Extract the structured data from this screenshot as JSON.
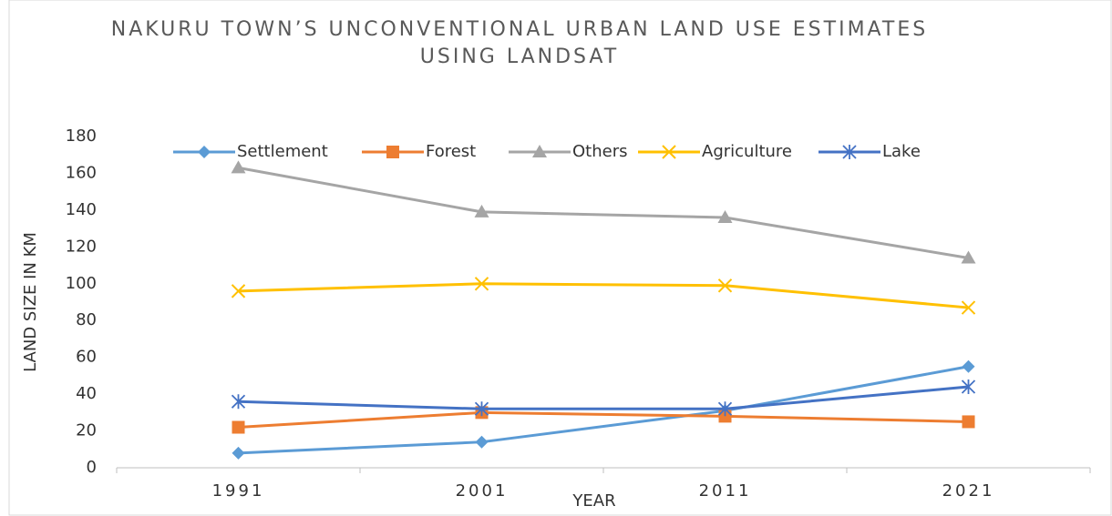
{
  "chart_data": {
    "type": "line",
    "title": "NAKURU TOWN’S UNCONVENTIONAL URBAN LAND USE ESTIMATES USING LANDSAT",
    "x_label": "YEAR",
    "y_label": "LAND SIZE IN KM",
    "categories": [
      "1991",
      "2001",
      "2011",
      "2021"
    ],
    "series": [
      {
        "name": "Settlement",
        "color": "#5b9bd5",
        "marker": "diamond",
        "values": [
          8,
          14,
          31,
          55
        ]
      },
      {
        "name": "Forest",
        "color": "#ed7d31",
        "marker": "square",
        "values": [
          22,
          30,
          28,
          25
        ]
      },
      {
        "name": "Others",
        "color": "#a5a5a5",
        "marker": "triangle",
        "values": [
          163,
          139,
          136,
          114
        ]
      },
      {
        "name": "Agriculture",
        "color": "#ffc000",
        "marker": "x",
        "values": [
          96,
          100,
          99,
          87
        ]
      },
      {
        "name": "Lake",
        "color": "#4472c4",
        "marker": "star",
        "values": [
          36,
          32,
          32,
          44
        ]
      }
    ],
    "ylim": [
      0,
      180
    ],
    "yticks": [
      0,
      20,
      40,
      60,
      80,
      100,
      120,
      140,
      160,
      180
    ],
    "grid": false,
    "legend": "top"
  }
}
